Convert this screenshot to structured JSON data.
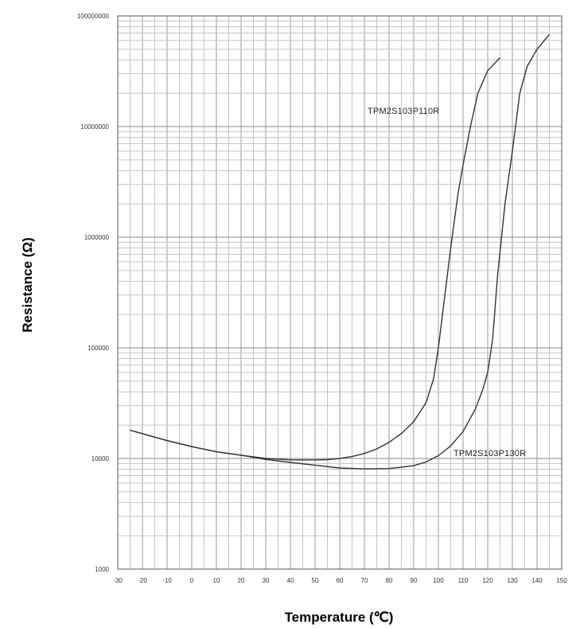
{
  "chart_data": {
    "type": "line",
    "title": "",
    "xlabel": "Temperature (℃)",
    "ylabel": "Resistance (Ω)",
    "xlim": [
      -30,
      150
    ],
    "ylim": [
      1000,
      100000000
    ],
    "yscale": "log",
    "grid": true,
    "x_ticks": [
      "-30",
      "-20",
      "-10",
      "0",
      "10",
      "20",
      "30",
      "40",
      "50",
      "60",
      "70",
      "80",
      "90",
      "100",
      "110",
      "120",
      "130",
      "140",
      "150"
    ],
    "y_ticks": [
      "1000",
      "10000",
      "100000",
      "1000000",
      "10000000",
      "100000000"
    ],
    "series": [
      {
        "name": "TPM2S103P110R",
        "color": "#333333",
        "x": [
          -25,
          -10,
          0,
          10,
          20,
          30,
          40,
          50,
          55,
          60,
          65,
          70,
          75,
          80,
          85,
          90,
          95,
          98,
          100,
          102,
          105,
          108,
          110,
          113,
          116,
          120,
          125
        ],
        "y": [
          18000,
          14500,
          12800,
          11500,
          10700,
          10000,
          9700,
          9700,
          9750,
          10000,
          10400,
          11100,
          12200,
          14000,
          16800,
          21500,
          32000,
          52000,
          100000,
          230000,
          800000,
          2500000,
          4500000,
          10000000,
          20000000,
          32000000,
          42000000
        ]
      },
      {
        "name": "TPM2S103P130R",
        "color": "#333333",
        "x": [
          -25,
          -10,
          0,
          10,
          20,
          30,
          40,
          50,
          60,
          70,
          80,
          90,
          95,
          100,
          105,
          110,
          115,
          118,
          120,
          122,
          124,
          127,
          130,
          133,
          136,
          140,
          145
        ],
        "y": [
          18000,
          14500,
          12800,
          11500,
          10700,
          9800,
          9200,
          8700,
          8200,
          8050,
          8100,
          8600,
          9300,
          10600,
          13000,
          17500,
          28000,
          42000,
          60000,
          120000,
          450000,
          2000000,
          6000000,
          20000000,
          35000000,
          50000000,
          68000000
        ]
      }
    ]
  }
}
